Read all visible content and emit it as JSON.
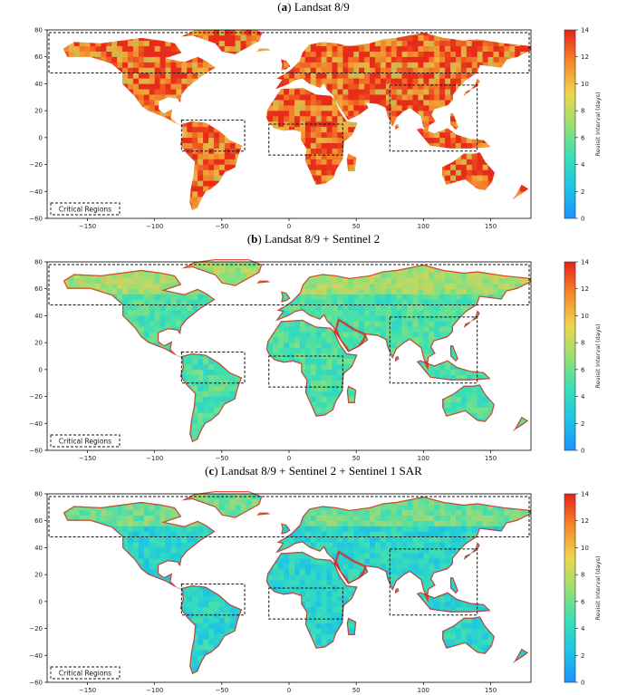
{
  "figure": {
    "panels": [
      {
        "tag": "a",
        "title": " Landsat 8/9"
      },
      {
        "tag": "b",
        "title": " Landsat 8/9 + Sentinel 2"
      },
      {
        "tag": "c",
        "title": " Landsat 8/9 + Sentinel 2 + Sentinel 1 SAR"
      }
    ],
    "legend_label": "Critical Regions",
    "colorbar_label": "Revisit Interval (days)"
  },
  "colors": {
    "colormap": [
      "#1e90ff",
      "#1cc6e6",
      "#3ce0b2",
      "#9ae070",
      "#f0d44a",
      "#f5862a",
      "#e52218"
    ],
    "ocean": "#ffffff",
    "land_panel_a_dominant": "#e52218",
    "land_panel_b_dominant": "#3ccfc8",
    "land_panel_c_dominant": "#42bfe0"
  },
  "chart_data": [
    {
      "type": "heatmap",
      "title": "(a) Landsat 8/9",
      "xlabel": "",
      "ylabel": "",
      "xlim": [
        -180,
        180
      ],
      "ylim": [
        -60,
        80
      ],
      "xticks": [
        -150,
        -100,
        -50,
        0,
        50,
        100,
        150
      ],
      "yticks": [
        80,
        60,
        40,
        20,
        0,
        -20,
        -40,
        -60
      ],
      "colorbar": {
        "label": "Revisit Interval (days)",
        "range": [
          0,
          14
        ],
        "ticks": [
          0,
          2,
          4,
          6,
          8,
          10,
          12,
          14
        ]
      },
      "typical_revisit_days": 13,
      "critical_regions": [
        {
          "name": "northern band",
          "lon": [
            -180,
            180
          ],
          "lat": [
            48,
            78
          ]
        },
        {
          "name": "south america",
          "lon": [
            -80,
            -33
          ],
          "lat": [
            -10,
            13
          ]
        },
        {
          "name": "africa",
          "lon": [
            -15,
            40
          ],
          "lat": [
            -13,
            10
          ]
        },
        {
          "name": "asia",
          "lon": [
            75,
            140
          ],
          "lat": [
            -10,
            39
          ]
        }
      ]
    },
    {
      "type": "heatmap",
      "title": "(b) Landsat 8/9 + Sentinel 2",
      "xlabel": "",
      "ylabel": "",
      "xlim": [
        -180,
        180
      ],
      "ylim": [
        -60,
        80
      ],
      "xticks": [
        -150,
        -100,
        -50,
        0,
        50,
        100,
        150
      ],
      "yticks": [
        80,
        60,
        40,
        20,
        0,
        -20,
        -40,
        -60
      ],
      "colorbar": {
        "label": "Revisit Interval (days)",
        "range": [
          0,
          14
        ],
        "ticks": [
          0,
          2,
          4,
          6,
          8,
          10,
          12,
          14
        ]
      },
      "typical_revisit_days": 5,
      "critical_regions": [
        {
          "name": "northern band",
          "lon": [
            -180,
            180
          ],
          "lat": [
            48,
            78
          ]
        },
        {
          "name": "south america",
          "lon": [
            -80,
            -33
          ],
          "lat": [
            -10,
            13
          ]
        },
        {
          "name": "africa",
          "lon": [
            -15,
            40
          ],
          "lat": [
            -13,
            10
          ]
        },
        {
          "name": "asia",
          "lon": [
            75,
            140
          ],
          "lat": [
            -10,
            39
          ]
        }
      ]
    },
    {
      "type": "heatmap",
      "title": "(c) Landsat 8/9 + Sentinel 2 + Sentinel 1 SAR",
      "xlabel": "",
      "ylabel": "",
      "xlim": [
        -180,
        180
      ],
      "ylim": [
        -60,
        80
      ],
      "xticks": [
        -150,
        -100,
        -50,
        0,
        50,
        100,
        150
      ],
      "yticks": [
        80,
        60,
        40,
        20,
        0,
        -20,
        -40,
        -60
      ],
      "colorbar": {
        "label": "Revisit Interval (days)",
        "range": [
          0,
          14
        ],
        "ticks": [
          0,
          2,
          4,
          6,
          8,
          10,
          12,
          14
        ]
      },
      "typical_revisit_days": 3.5,
      "critical_regions": [
        {
          "name": "northern band",
          "lon": [
            -180,
            180
          ],
          "lat": [
            48,
            78
          ]
        },
        {
          "name": "south america",
          "lon": [
            -80,
            -33
          ],
          "lat": [
            -10,
            13
          ]
        },
        {
          "name": "africa",
          "lon": [
            -15,
            40
          ],
          "lat": [
            -13,
            10
          ]
        },
        {
          "name": "asia",
          "lon": [
            75,
            140
          ],
          "lat": [
            -10,
            39
          ]
        }
      ]
    }
  ]
}
